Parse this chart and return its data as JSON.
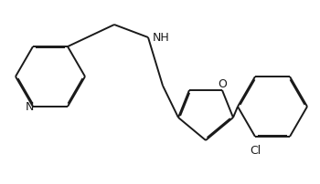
{
  "bg_color": "#ffffff",
  "line_color": "#1a1a1a",
  "line_width": 1.4,
  "dbo": 0.012,
  "figsize": [
    3.5,
    2.03
  ],
  "dpi": 100,
  "xlim": [
    0,
    3.5
  ],
  "ylim": [
    0,
    2.03
  ]
}
